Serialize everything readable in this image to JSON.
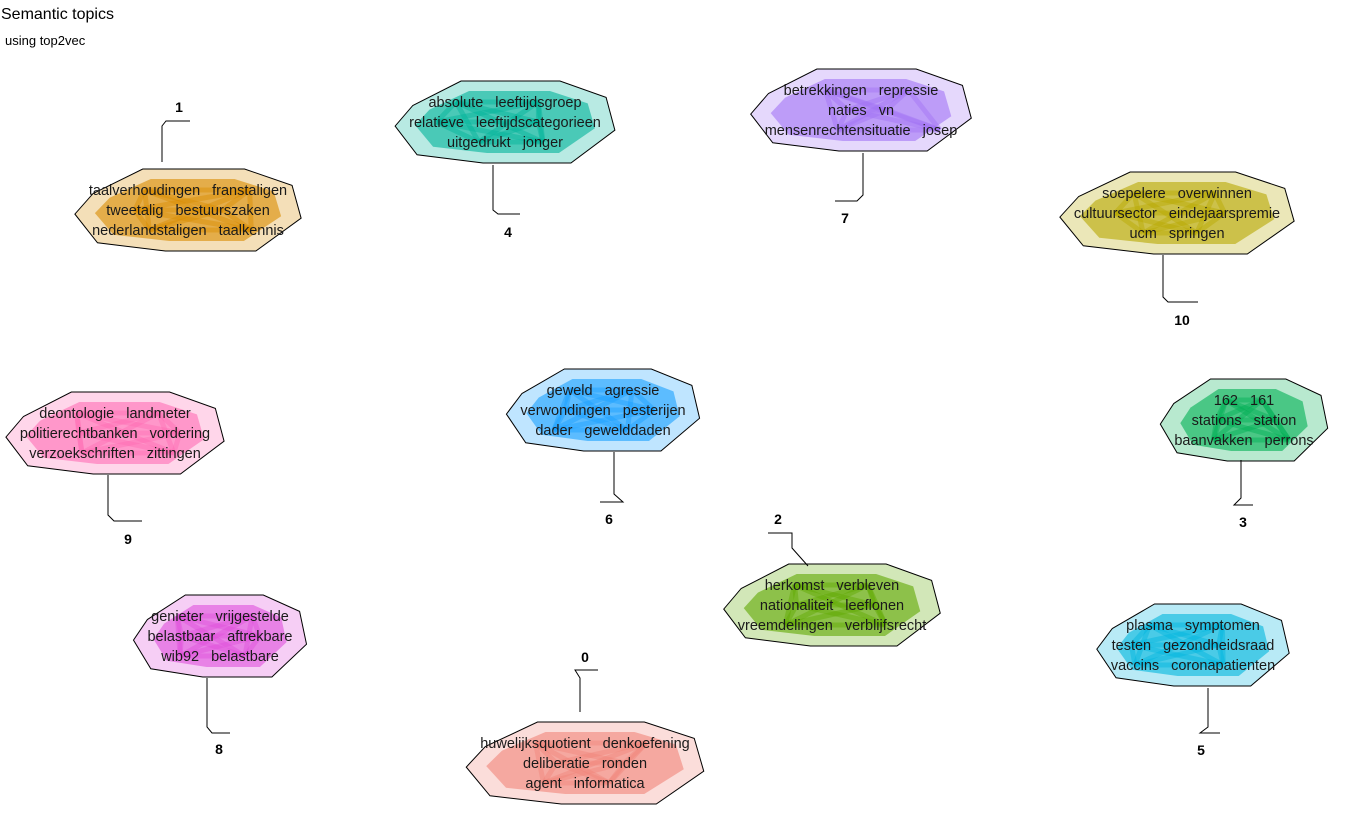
{
  "title": "Semantic topics",
  "subtitle": "using top2vec",
  "topics": [
    {
      "id": "0",
      "color": "#F2857A",
      "words": [
        "huwelijksquotient",
        "denkoefening",
        "deliberatie",
        "ronden",
        "agent",
        "informatica"
      ]
    },
    {
      "id": "1",
      "color": "#D98C00",
      "words": [
        "taalverhoudingen",
        "franstaligen",
        "tweetalig",
        "bestuurszaken",
        "nederlandstaligen",
        "taalkennis"
      ]
    },
    {
      "id": "2",
      "color": "#5FA800",
      "words": [
        "herkomst",
        "verbleven",
        "nationaliteit",
        "leeflonen",
        "vreemdelingen",
        "verblijfsrecht"
      ]
    },
    {
      "id": "3",
      "color": "#00B054",
      "words": [
        "162",
        "161",
        "stations",
        "station",
        "baanvakken",
        "perrons"
      ]
    },
    {
      "id": "4",
      "color": "#00B39A",
      "words": [
        "absolute",
        "leeftijdsgroep",
        "relatieve",
        "leeftijdscategorieen",
        "uitgedrukt",
        "jonger"
      ]
    },
    {
      "id": "5",
      "color": "#00B5DE",
      "words": [
        "plasma",
        "symptomen",
        "testen",
        "gezondheidsraad",
        "vaccins",
        "coronapatienten"
      ]
    },
    {
      "id": "6",
      "color": "#1AA0FF",
      "words": [
        "geweld",
        "agressie",
        "verwondingen",
        "pesterijen",
        "dader",
        "gewelddaden"
      ]
    },
    {
      "id": "7",
      "color": "#A274F5",
      "words": [
        "betrekkingen",
        "repressie",
        "naties",
        "vn",
        "mensenrechtensituatie",
        "josep"
      ]
    },
    {
      "id": "8",
      "color": "#E050DC",
      "words": [
        "genieter",
        "vrijgestelde",
        "belastbaar",
        "aftrekbare",
        "wib92",
        "belastbare"
      ]
    },
    {
      "id": "9",
      "color": "#FF6DB4",
      "words": [
        "deontologie",
        "landmeter",
        "politierechtbanken",
        "vordering",
        "verzoekschriften",
        "zittingen"
      ]
    },
    {
      "id": "10",
      "color": "#B8A800",
      "words": [
        "soepelere",
        "overwinnen",
        "cultuursector",
        "eindejaarspremie",
        "ucm",
        "springen"
      ]
    }
  ]
}
